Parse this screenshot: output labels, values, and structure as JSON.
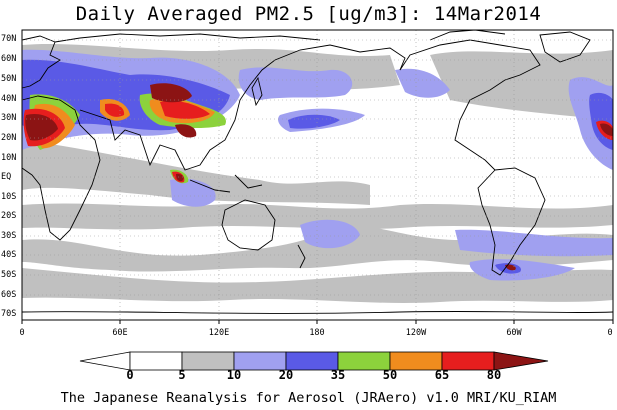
{
  "title": "Daily Averaged PM2.5 [ug/m3]: 14Mar2014",
  "credit": "The Japanese Reanalysis for Aerosol (JRAero) v1.0 MRI/KU_RIAM",
  "lat_labels": [
    "70N",
    "60N",
    "50N",
    "40N",
    "30N",
    "20N",
    "10N",
    "EQ",
    "10S",
    "20S",
    "30S",
    "40S",
    "50S",
    "60S",
    "70S"
  ],
  "lon_labels": [
    "0",
    "60E",
    "120E",
    "180",
    "120W",
    "60W",
    "0"
  ],
  "colorbar": {
    "levels": [
      "0",
      "5",
      "10",
      "20",
      "35",
      "50",
      "65",
      "80"
    ],
    "colors": [
      "#ffffff",
      "#c0c0c0",
      "#a0a0f0",
      "#5a5ae6",
      "#8cd23c",
      "#f08c1e",
      "#e61e1e",
      "#8c1414"
    ]
  },
  "colors": {
    "ocean": "#ffffff",
    "coastline": "#000000",
    "grid": "#9a9a9a",
    "gray": "#c0c0c0",
    "lightblue": "#a0a0f0",
    "blue": "#5a5ae6",
    "green": "#8cd23c",
    "orange": "#f08c1e",
    "red": "#e61e1e",
    "darkred": "#8c1414"
  }
}
